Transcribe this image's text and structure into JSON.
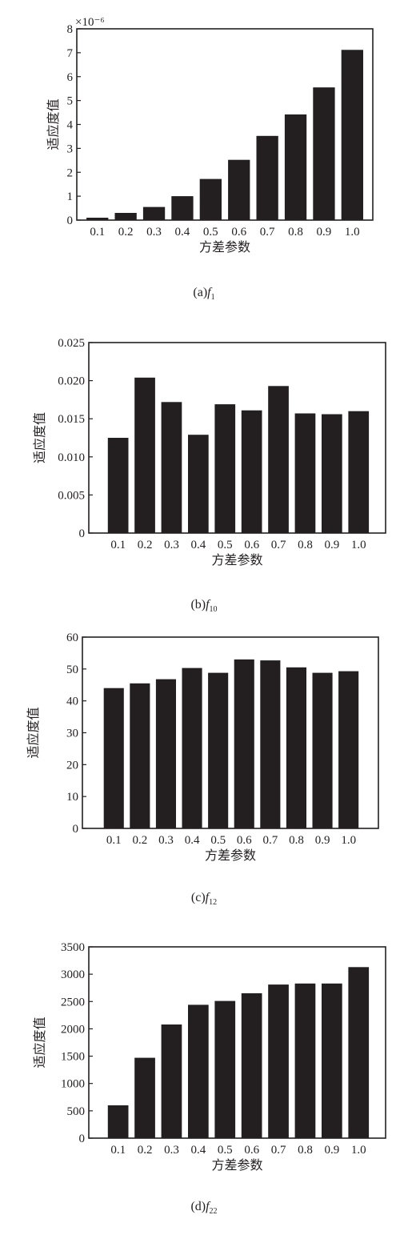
{
  "chart_data": [
    {
      "type": "bar",
      "categories": [
        "0.1",
        "0.2",
        "0.3",
        "0.4",
        "0.5",
        "0.6",
        "0.7",
        "0.8",
        "0.9",
        "1.0"
      ],
      "values": [
        0.1,
        0.3,
        0.55,
        1.0,
        1.72,
        2.52,
        3.52,
        4.42,
        5.55,
        7.12
      ],
      "yticks": [
        "0",
        "1",
        "2",
        "3",
        "4",
        "5",
        "6",
        "7",
        "8"
      ],
      "ylim": [
        0,
        8
      ],
      "scale_label": "×10⁻⁶",
      "xlabel": "方差参数",
      "ylabel": "适应度值",
      "caption_prefix": "(a)",
      "caption_func": "f",
      "caption_sub": "1"
    },
    {
      "type": "bar",
      "categories": [
        "0.1",
        "0.2",
        "0.3",
        "0.4",
        "0.5",
        "0.6",
        "0.7",
        "0.8",
        "0.9",
        "1.0"
      ],
      "values": [
        0.0125,
        0.0204,
        0.0172,
        0.0129,
        0.0169,
        0.0161,
        0.0193,
        0.0157,
        0.0156,
        0.016
      ],
      "yticks": [
        "0",
        "0.005",
        "0.010",
        "0.015",
        "0.020",
        "0.025"
      ],
      "ylim": [
        0,
        0.025
      ],
      "xlabel": "方差参数",
      "ylabel": "适应度值",
      "caption_prefix": "(b)",
      "caption_func": "f",
      "caption_sub": "10"
    },
    {
      "type": "bar",
      "categories": [
        "0.1",
        "0.2",
        "0.3",
        "0.4",
        "0.5",
        "0.6",
        "0.7",
        "0.8",
        "0.9",
        "1.0"
      ],
      "values": [
        44,
        45.5,
        46.8,
        50.3,
        48.8,
        53.0,
        52.7,
        50.5,
        48.8,
        49.3
      ],
      "yticks": [
        "0",
        "10",
        "20",
        "30",
        "40",
        "50",
        "60"
      ],
      "ylim": [
        0,
        60
      ],
      "xlabel": "方差参数",
      "ylabel": "适应度值",
      "caption_prefix": "(c)",
      "caption_func": "f",
      "caption_sub": "12"
    },
    {
      "type": "bar",
      "categories": [
        "0.1",
        "0.2",
        "0.3",
        "0.4",
        "0.5",
        "0.6",
        "0.7",
        "0.8",
        "0.9",
        "1.0"
      ],
      "values": [
        600,
        1470,
        2080,
        2440,
        2510,
        2650,
        2810,
        2830,
        2830,
        3130
      ],
      "yticks": [
        "0",
        "500",
        "1000",
        "1500",
        "2000",
        "2500",
        "3000",
        "3500"
      ],
      "ylim": [
        0,
        3500
      ],
      "xlabel": "方差参数",
      "ylabel": "适应度值",
      "caption_prefix": "(d)",
      "caption_func": "f",
      "caption_sub": "22"
    }
  ]
}
